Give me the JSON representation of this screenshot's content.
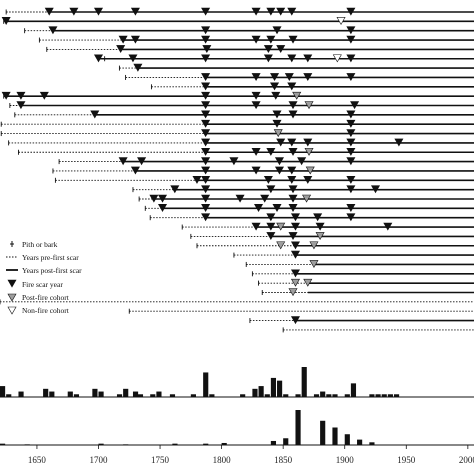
{
  "chart_data": {
    "type": "fire-history-chart",
    "xlim": [
      1620,
      2005
    ],
    "x_ticks": [
      1650,
      1700,
      1750,
      1800,
      1850,
      1900,
      1950,
      2000
    ],
    "grid": false,
    "legend_position": "center-left",
    "legend": {
      "pith": "Pith or bark",
      "pre": "Years pre-first scar",
      "post": "Years post-first scar",
      "scar": "Fire scar year",
      "post_fire_cohort": "Post-fire cohort",
      "non_fire_cohort": "Non-fire cohort"
    },
    "colors": {
      "scar": "#111111",
      "cohort": "#9e9e9e",
      "non_fire": "#ffffff",
      "line": "#111111"
    },
    "samples": [
      {
        "start": 1625,
        "first": 1660,
        "end": 2005,
        "scars": [
          1660,
          1680,
          1700,
          1730,
          1787,
          1828,
          1840,
          1848,
          1857,
          1905
        ],
        "post": [],
        "non": []
      },
      {
        "start": 1623,
        "first": 1625,
        "end": 2005,
        "scars": [
          1625
        ],
        "post": [],
        "non": [
          1897
        ]
      },
      {
        "start": 1640,
        "first": 1663,
        "end": 2005,
        "scars": [
          1663,
          1787,
          1845,
          1905
        ],
        "post": [],
        "non": []
      },
      {
        "start": 1652,
        "first": 1720,
        "end": 2005,
        "scars": [
          1720,
          1730,
          1787,
          1828,
          1840,
          1858,
          1905
        ],
        "post": [],
        "non": []
      },
      {
        "start": 1658,
        "first": 1718,
        "end": 2005,
        "scars": [
          1718,
          1788,
          1838,
          1848
        ],
        "post": [],
        "non": []
      },
      {
        "start": 1705,
        "first": 1700,
        "end": 2005,
        "scars": [
          1700,
          1728,
          1787,
          1838,
          1857,
          1870,
          1905
        ],
        "post": [],
        "non": [
          1894
        ]
      },
      {
        "start": 1717,
        "first": 1732,
        "end": 2005,
        "scars": [
          1732
        ],
        "post": [],
        "non": []
      },
      {
        "start": 1722,
        "first": 1787,
        "end": 2005,
        "scars": [
          1787,
          1828,
          1843,
          1855,
          1870,
          1905
        ],
        "post": [],
        "non": []
      },
      {
        "start": 1743,
        "first": 1787,
        "end": 2005,
        "scars": [
          1787,
          1843,
          1857
        ],
        "post": [],
        "non": []
      },
      {
        "start": 1623,
        "first": 1623,
        "end": 2005,
        "scars": [
          1625,
          1637,
          1656,
          1787,
          1828,
          1844
        ],
        "post": [
          1861
        ],
        "non": []
      },
      {
        "start": 1628,
        "first": 1637,
        "end": 2005,
        "scars": [
          1637,
          1787,
          1828,
          1858,
          1908
        ],
        "post": [
          1871
        ],
        "non": []
      },
      {
        "start": 1632,
        "first": 1697,
        "end": 2005,
        "scars": [
          1697,
          1787,
          1845,
          1858,
          1905
        ],
        "post": [],
        "non": []
      },
      {
        "start": 1621,
        "first": 1787,
        "end": 2005,
        "scars": [
          1787,
          1845,
          1905
        ],
        "post": [],
        "non": []
      },
      {
        "start": 1621,
        "first": 1787,
        "end": 2005,
        "scars": [
          1787,
          1905
        ],
        "post": [
          1846
        ],
        "non": []
      },
      {
        "start": 1627,
        "first": 1787,
        "end": 2005,
        "scars": [
          1787,
          1848,
          1857,
          1870,
          1905,
          1944
        ],
        "post": [],
        "non": []
      },
      {
        "start": 1635,
        "first": 1787,
        "end": 2005,
        "scars": [
          1787,
          1828,
          1840,
          1858,
          1905
        ],
        "post": [
          1871
        ],
        "non": []
      },
      {
        "start": 1668,
        "first": 1720,
        "end": 2005,
        "scars": [
          1720,
          1735,
          1787,
          1810,
          1847,
          1865,
          1905
        ],
        "post": [],
        "non": []
      },
      {
        "start": 1663,
        "first": 1730,
        "end": 2005,
        "scars": [
          1730,
          1787,
          1828,
          1847,
          1857
        ],
        "post": [
          1872
        ],
        "non": []
      },
      {
        "start": 1665,
        "first": 1780,
        "end": 2005,
        "scars": [
          1780,
          1787,
          1838,
          1857,
          1870,
          1905
        ],
        "post": [],
        "non": []
      },
      {
        "start": 1728,
        "first": 1762,
        "end": 2005,
        "scars": [
          1762,
          1787,
          1840,
          1858,
          1905,
          1925
        ],
        "post": [],
        "non": []
      },
      {
        "start": 1733,
        "first": 1745,
        "end": 2005,
        "scars": [
          1745,
          1752,
          1787,
          1815,
          1835,
          1858
        ],
        "post": [
          1869
        ],
        "non": []
      },
      {
        "start": 1738,
        "first": 1752,
        "end": 2005,
        "scars": [
          1752,
          1787,
          1830,
          1845,
          1858,
          1905
        ],
        "post": [],
        "non": []
      },
      {
        "start": 1742,
        "first": 1787,
        "end": 2005,
        "scars": [
          1787,
          1840,
          1860,
          1878,
          1905
        ],
        "post": [],
        "non": []
      },
      {
        "start": 1768,
        "first": 1828,
        "end": 2005,
        "scars": [
          1828,
          1840,
          1860,
          1880,
          1935
        ],
        "post": [
          1848
        ],
        "non": []
      },
      {
        "start": 1775,
        "first": 1840,
        "end": 2005,
        "scars": [
          1840,
          1858
        ],
        "post": [
          1880
        ],
        "non": []
      },
      {
        "start": 1780,
        "first": 1860,
        "end": 2005,
        "scars": [
          1860
        ],
        "post": [
          1848,
          1875
        ],
        "non": []
      },
      {
        "start": 1810,
        "first": 1860,
        "end": 2005,
        "scars": [
          1860
        ],
        "post": [],
        "non": []
      },
      {
        "start": 1820,
        "first": 1875,
        "end": 2005,
        "scars": [],
        "post": [
          1875
        ],
        "non": []
      },
      {
        "start": 1825,
        "first": 1860,
        "end": 2005,
        "scars": [
          1860
        ],
        "post": [],
        "non": []
      },
      {
        "start": 1830,
        "first": 1870,
        "end": 2005,
        "scars": [],
        "post": [
          1860,
          1870
        ],
        "non": []
      },
      {
        "start": 1833,
        "first": 1870,
        "end": 2005,
        "scars": [],
        "post": [
          1858
        ],
        "non": []
      },
      {
        "start": 1620,
        "first": 2005,
        "end": 2005,
        "scars": [],
        "post": [],
        "non": []
      },
      {
        "start": 1725,
        "first": 2005,
        "end": 2005,
        "scars": [],
        "post": [],
        "non": []
      },
      {
        "start": 1823,
        "first": 1860,
        "end": 2005,
        "scars": [
          1860
        ],
        "post": [],
        "non": []
      },
      {
        "start": 1850,
        "first": 2005,
        "end": 2005,
        "scars": [],
        "post": [],
        "non": []
      }
    ],
    "scar_histogram": {
      "bins": [
        1620,
        1625,
        1635,
        1655,
        1660,
        1675,
        1680,
        1695,
        1700,
        1715,
        1720,
        1728,
        1732,
        1742,
        1747,
        1758,
        1775,
        1785,
        1790,
        1815,
        1825,
        1830,
        1835,
        1840,
        1845,
        1850,
        1860,
        1865,
        1875,
        1880,
        1885,
        1890,
        1900,
        1905,
        1920,
        1925,
        1930,
        1935,
        1940
      ],
      "values": [
        4,
        1,
        2,
        3,
        2,
        2,
        1,
        3,
        2,
        1,
        3,
        2,
        1,
        1,
        2,
        1,
        1,
        9,
        1,
        1,
        3,
        4,
        1,
        7,
        6,
        1,
        1,
        11,
        1,
        2,
        1,
        1,
        1,
        5,
        1,
        1,
        1,
        1,
        1
      ]
    },
    "cohort_histogram": {
      "bins": [
        1620,
        1640,
        1700,
        1720,
        1760,
        1785,
        1800,
        1840,
        1850,
        1860,
        1880,
        1890,
        1900,
        1910,
        1920
      ],
      "values": [
        1,
        0.5,
        1,
        0.5,
        1,
        1,
        1.5,
        3,
        5,
        26,
        18,
        13,
        8,
        4,
        2
      ]
    }
  }
}
